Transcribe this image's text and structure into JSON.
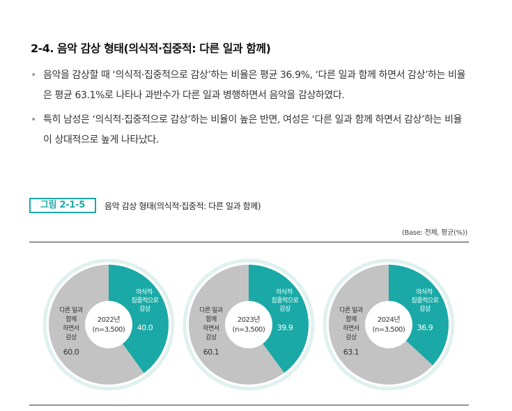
{
  "heading": "2-4. 음악 감상 형태(의식적·집중적: 다른 일과 함께)",
  "bullets": [
    "음악을 감상할 때 ‘의식적·집중적으로 감상’하는 비율은 평균 36.9%, ‘다른 일과 함께 하면서 감상’하는 비율은 평균 63.1%로 나타나 과반수가 다른 일과 병행하면서 음악을 감상하였다.",
    "특히 남성은 ‘의식적·집중적으로 감상’하는 비율이 높은 반면, 여성은 ‘다른 일과 함께 하면서 감상’하는 비율이 상대적으로 높게 나타났다."
  ],
  "figure": {
    "label": "그림 2-1-5",
    "title": "음악 감상 형태(의식적·집중적: 다른 일과 함께)",
    "base_note": "(Base: 전체, 평균(%))"
  },
  "colors": {
    "teal": "#1aa9a6",
    "gray": "#c3c3c3",
    "ring": "#dff1ef"
  },
  "chart_data": [
    {
      "type": "pie",
      "center_label": [
        "2022년",
        "(n=3,500)"
      ],
      "slices": [
        {
          "label": [
            "의식적·",
            "집중적으로",
            "감상"
          ],
          "value": 40.0
        },
        {
          "label": [
            "다른 일과",
            "함께",
            "하면서",
            "감상"
          ],
          "value": 60.0
        }
      ]
    },
    {
      "type": "pie",
      "center_label": [
        "2023년",
        "(n=3,500)"
      ],
      "slices": [
        {
          "label": [
            "의식적·",
            "집중적으로",
            "감상"
          ],
          "value": 39.9
        },
        {
          "label": [
            "다른 일과",
            "함께",
            "하면서",
            "감상"
          ],
          "value": 60.1
        }
      ]
    },
    {
      "type": "pie",
      "center_label": [
        "2024년",
        "(n=3,500)"
      ],
      "slices": [
        {
          "label": [
            "의식적·",
            "집중적으로",
            "감상"
          ],
          "value": 36.9
        },
        {
          "label": [
            "다른 일과",
            "함께",
            "하면서",
            "감상"
          ],
          "value": 63.1
        }
      ]
    }
  ]
}
